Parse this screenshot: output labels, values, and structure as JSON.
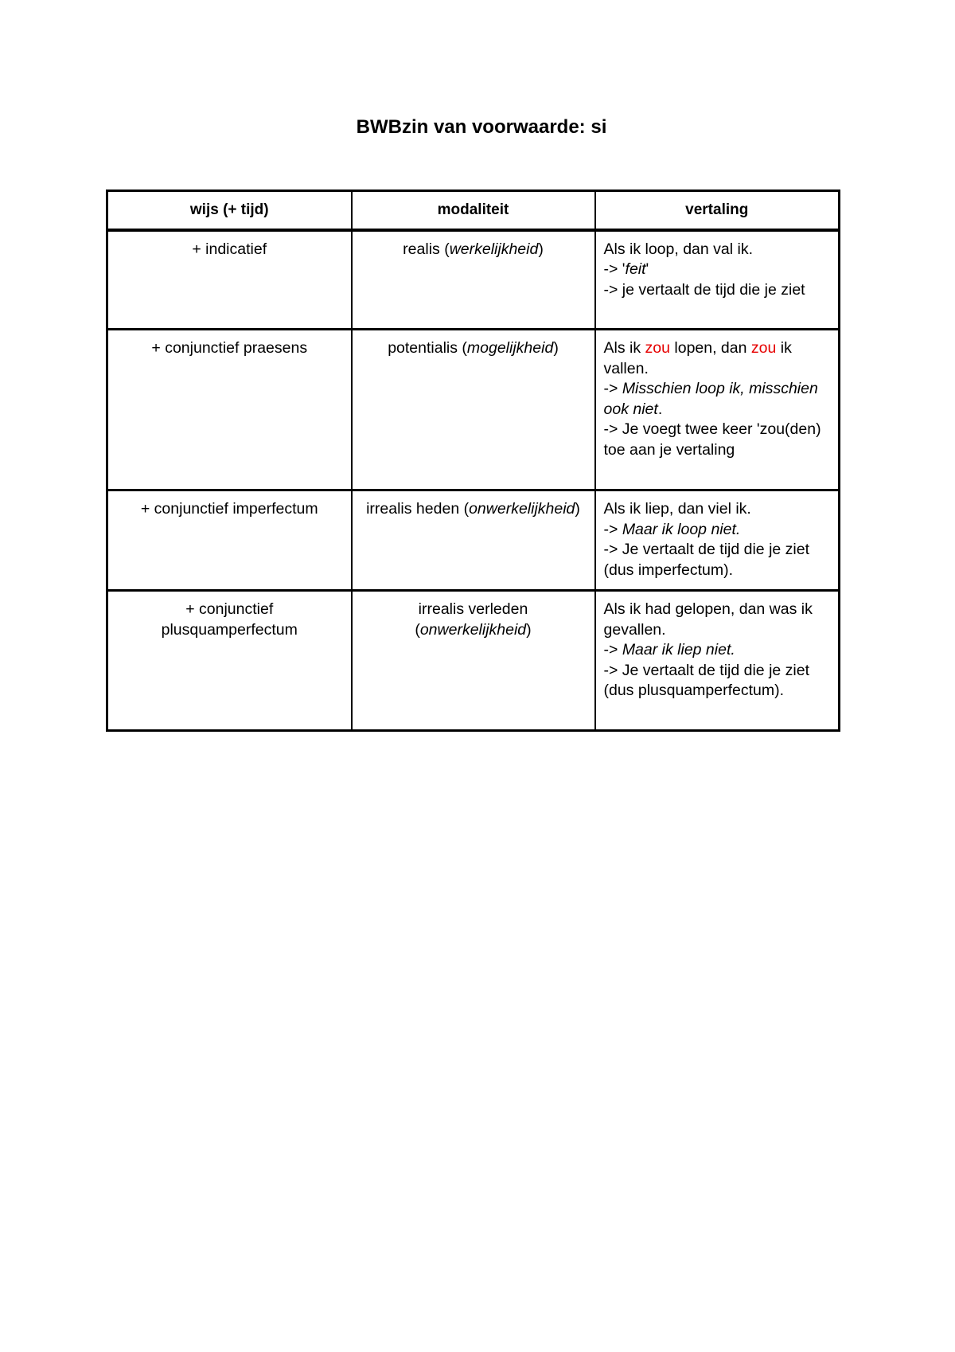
{
  "title": "BWBzin van voorwaarde: si",
  "table": {
    "headers": [
      "wijs (+ tijd)",
      "modaliteit",
      "vertaling"
    ],
    "rows": [
      {
        "wijs": "+ indicatief",
        "modaliteit": {
          "plain": "realis (",
          "italic": "werkelijkheid",
          "end": ")"
        },
        "vertaling": {
          "l1": "Als ik loop, dan val ik.",
          "l2a": "-> '",
          "l2b": "feit",
          "l2c": "'",
          "l3": "-> je vertaalt de tijd die je ziet"
        }
      },
      {
        "wijs": "+ conjunctief praesens",
        "modaliteit": {
          "plain": "potentialis (",
          "italic": "mogelijkheid",
          "end": ")"
        },
        "vertaling": {
          "a": "Als ik ",
          "b": "zou",
          "c": " lopen, dan ",
          "d": "zou",
          "e": " ik vallen.",
          "l2a": "-> ",
          "l2b": "Misschien loop ik, misschien ook niet",
          "l2c": ".",
          "l3": "-> Je voegt twee keer 'zou(den) toe aan je vertaling"
        }
      },
      {
        "wijs": "+ conjunctief imperfectum",
        "modaliteit": {
          "plain": "irrealis heden (",
          "italic": "onwerkelijkheid",
          "end": ")"
        },
        "vertaling": {
          "l1": "Als ik liep, dan viel ik.",
          "l2a": "-> ",
          "l2b": "Maar ik loop niet.",
          "l3": "-> Je vertaalt de tijd die je ziet (dus imperfectum)."
        }
      },
      {
        "wijs": "+ conjunctief plusquamperfectum",
        "modaliteit": {
          "plain": "irrealis verleden (",
          "italic": "onwerkelijkheid",
          "end": ")"
        },
        "vertaling": {
          "l1": "Als ik had gelopen, dan was ik gevallen.",
          "l2a": "-> ",
          "l2b": "Maar ik liep niet.",
          "l3": "-> Je vertaalt de tijd die je ziet (dus plusquamperfectum)."
        }
      }
    ]
  },
  "colors": {
    "highlight": "#e60000"
  }
}
